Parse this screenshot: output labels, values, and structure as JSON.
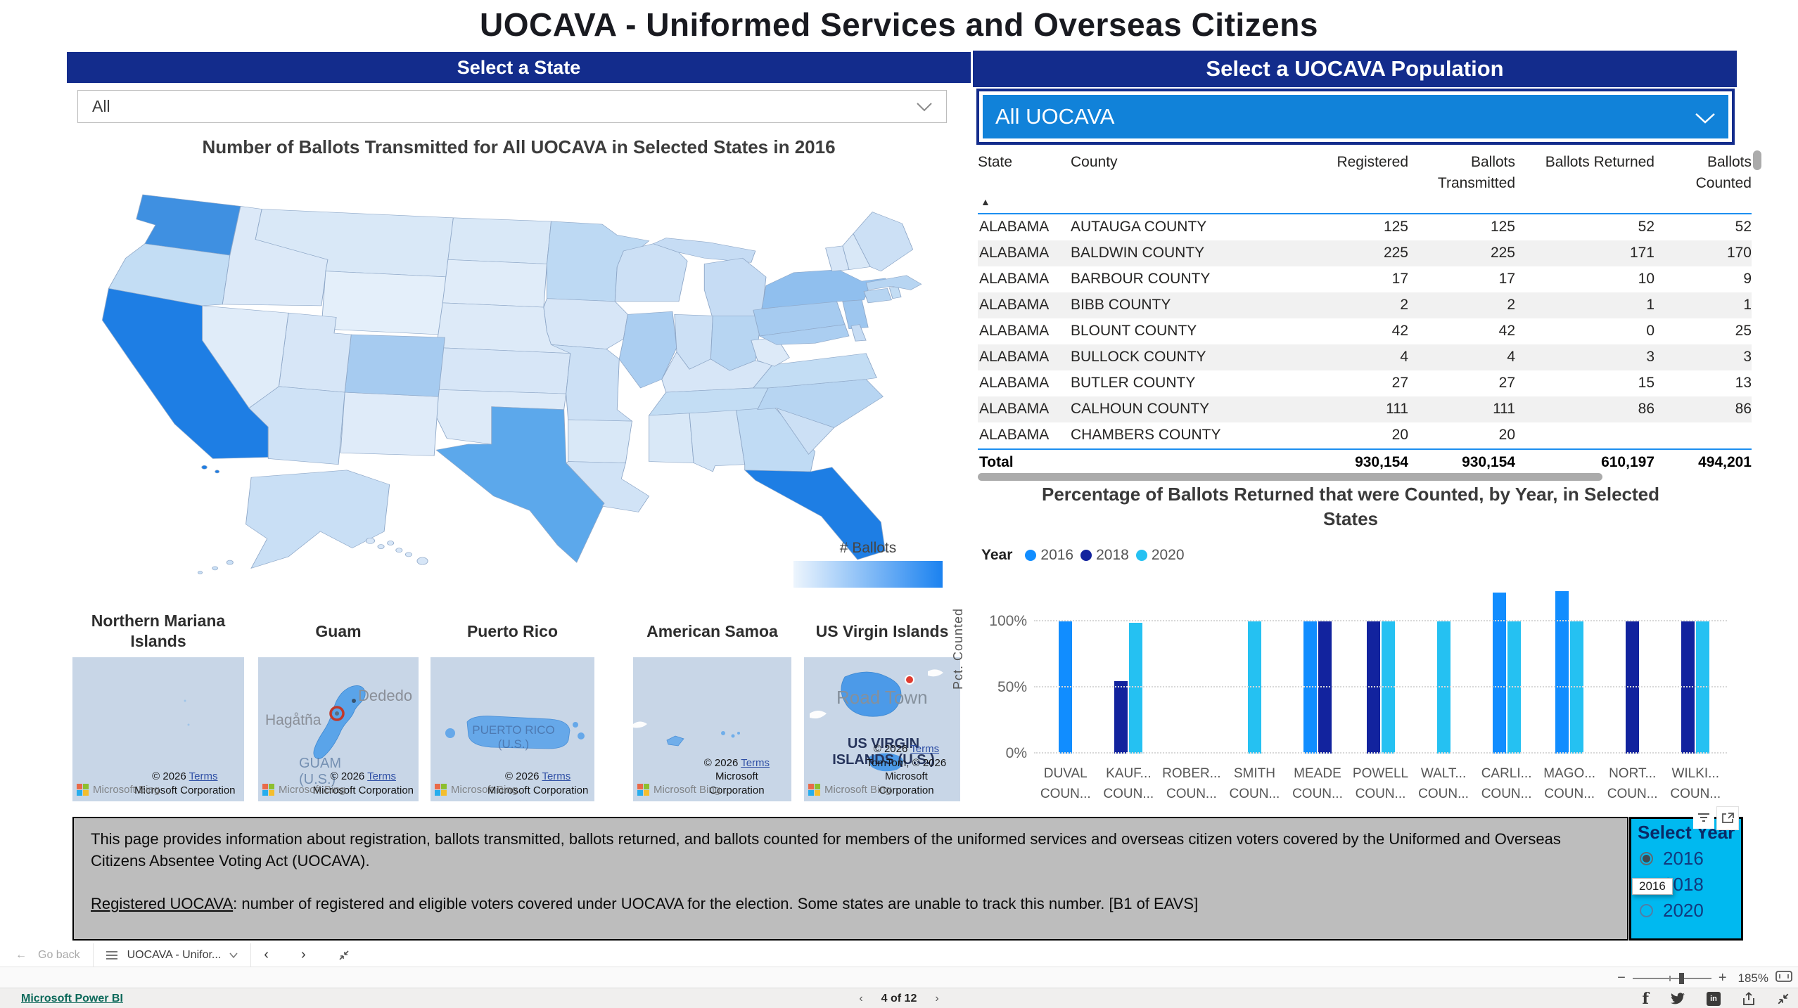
{
  "page_title": "UOCAVA - Uniformed Services and Overseas Citizens",
  "left_panel": {
    "header": "Select a State",
    "state_dropdown_value": "All",
    "map_title": "Number of Ballots Transmitted for All UOCAVA in Selected States in 2016",
    "territories": [
      {
        "name": "Northern Mariana Islands",
        "labels": [],
        "attribution": {
          "prefix": "© 2026",
          "terms": "Terms",
          "rest": "Microsoft Corporation"
        },
        "bing": "Microsoft Bing"
      },
      {
        "name": "Guam",
        "labels": [
          "Hagåtña",
          "Dededo",
          "GUAM (U.S.)"
        ],
        "attribution": {
          "prefix": "© 2026",
          "terms": "Terms",
          "rest": "Microsoft Corporation"
        },
        "bing": "Microsoft Bing"
      },
      {
        "name": "Puerto Rico",
        "labels": [
          "PUERTO RICO (U.S.)"
        ],
        "attribution": {
          "prefix": "© 2026",
          "terms": "Terms",
          "rest": "Microsoft Corporation"
        },
        "bing": "Microsoft Bing"
      },
      {
        "name": "American Samoa",
        "labels": [],
        "attribution": {
          "prefix": "© 2026",
          "terms": "Terms",
          "rest": "Microsoft Corporation"
        },
        "bing": "Microsoft Bing"
      },
      {
        "name": "US Virgin Islands",
        "labels": [
          "Road Town",
          "US VIRGIN ISLANDS (U.S.)"
        ],
        "attribution": {
          "prefix": "© 2026",
          "terms": "Terms",
          "rest": "TomTom, © 2026 Microsoft Corporation"
        },
        "bing": "Microsoft Bing"
      }
    ]
  },
  "map": {
    "legend": {
      "label": "# Ballots",
      "gradient": [
        "#EDF5FD",
        "#1B82F0"
      ]
    },
    "default_fill": "#DCE9F8",
    "state_fills": {
      "WA": "#3F90E1",
      "OR": "#C3DDF4",
      "CA": "#1E7EE4",
      "NV": "#E0ECF9",
      "ID": "#DCE9F8",
      "MT": "#D9E8F7",
      "WY": "#E4EFFA",
      "UT": "#D7E6F7",
      "CO": "#A6CBF0",
      "AZ": "#CFE2F6",
      "NM": "#DFEBF9",
      "ND": "#D9E8F7",
      "SD": "#E0ECF9",
      "NE": "#DDEAF8",
      "KS": "#D7E6F7",
      "OK": "#DDEAF8",
      "TX": "#5CA8EB",
      "MN": "#BDD9F3",
      "IA": "#D7E6F7",
      "MO": "#CCE0F5",
      "AR": "#D9E8F7",
      "LA": "#D1E3F6",
      "WI": "#CCE0F5",
      "IL": "#ABCEF1",
      "MI": "#C6DCF4",
      "IN": "#CCE0F5",
      "OH": "#B7D5F2",
      "KY": "#D7E6F7",
      "TN": "#C3DDF4",
      "MS": "#D9E8F7",
      "AL": "#D4E5F6",
      "GA": "#C0DBF4",
      "FL": "#1E7EE4",
      "SC": "#CCE0F5",
      "NC": "#B7D5F2",
      "VA": "#C3DDF4",
      "WV": "#DDEAF8",
      "PA": "#A6CBF0",
      "NY": "#90BFEE",
      "NJ": "#9DC6EF",
      "MD": "#ABCEF1",
      "DE": "#C6DCF4",
      "CT": "#B7D5F2",
      "RI": "#C3DDF4",
      "MA": "#B7D5F2",
      "VT": "#D7E6F7",
      "NH": "#D9E8F7",
      "ME": "#CCE0F5",
      "AK": "#C9DFF5",
      "HI": "#D7E6F7"
    }
  },
  "right_panel": {
    "header": "Select a UOCAVA Population",
    "population_dropdown_value": "All UOCAVA",
    "table": {
      "columns": [
        "State",
        "County",
        "Registered",
        "Ballots\nTransmitted",
        "Ballots Returned",
        "Ballots\nCounted"
      ],
      "sort_icon": "▲",
      "rows": [
        [
          "ALABAMA",
          "AUTAUGA COUNTY",
          "125",
          "125",
          "52",
          "52"
        ],
        [
          "ALABAMA",
          "BALDWIN COUNTY",
          "225",
          "225",
          "171",
          "170"
        ],
        [
          "ALABAMA",
          "BARBOUR COUNTY",
          "17",
          "17",
          "10",
          "9"
        ],
        [
          "ALABAMA",
          "BIBB COUNTY",
          "2",
          "2",
          "1",
          "1"
        ],
        [
          "ALABAMA",
          "BLOUNT COUNTY",
          "42",
          "42",
          "0",
          "25"
        ],
        [
          "ALABAMA",
          "BULLOCK COUNTY",
          "4",
          "4",
          "3",
          "3"
        ],
        [
          "ALABAMA",
          "BUTLER COUNTY",
          "27",
          "27",
          "15",
          "13"
        ],
        [
          "ALABAMA",
          "CALHOUN COUNTY",
          "111",
          "111",
          "86",
          "86"
        ],
        [
          "ALABAMA",
          "CHAMBERS COUNTY",
          "20",
          "20",
          "",
          ""
        ]
      ],
      "total_row": [
        "Total",
        "",
        "930,154",
        "930,154",
        "610,197",
        "494,201"
      ]
    }
  },
  "chart_data": {
    "type": "bar",
    "title": "Percentage of Ballots Returned that were Counted, by Year, in Selected States",
    "legend_title": "Year",
    "legend_position": "top-left",
    "ylabel": "Pct. Counted",
    "ymax": 130,
    "grid": true,
    "yticks": [
      {
        "value": 0,
        "label": "0%"
      },
      {
        "value": 50,
        "label": "50%"
      },
      {
        "value": 100,
        "label": "100%"
      }
    ],
    "categories": [
      "DUVAL COUN...",
      "KAUF... COUN...",
      "ROBER... COUN...",
      "SMITH COUN...",
      "MEADE COUN...",
      "POWELL COUN...",
      "WALT... COUN...",
      "CARLI... COUN...",
      "MAGO... COUN...",
      "NORT... COUN...",
      "WILKI... COUN..."
    ],
    "series": [
      {
        "name": "2016",
        "color": "#118DFF",
        "values": [
          100,
          null,
          null,
          null,
          100,
          null,
          null,
          122,
          123,
          null,
          null
        ]
      },
      {
        "name": "2018",
        "color": "#12239E",
        "values": [
          null,
          55,
          null,
          null,
          100,
          100,
          null,
          null,
          null,
          100,
          100
        ]
      },
      {
        "name": "2020",
        "color": "#25C1F2",
        "values": [
          null,
          99,
          null,
          100,
          null,
          100,
          100,
          100,
          100,
          null,
          100
        ]
      }
    ]
  },
  "description": {
    "para1": "This page provides information about registration, ballots transmitted, ballots returned, and ballots counted for members of the uniformed services and overseas citizen voters covered by the Uniformed and Overseas Citizens Absentee Voting Act (UOCAVA).",
    "para2_link": "Registered UOCAVA",
    "para2_rest": ": number of registered and eligible voters covered under UOCAVA for the election. Some states are unable to track this number. [B1 of EAVS]"
  },
  "year_selector": {
    "title": "Select Year",
    "options": [
      "2016",
      "2018",
      "2020"
    ],
    "selected": "2016",
    "tooltip": "2016"
  },
  "footer": {
    "go_back": "Go back",
    "page_menu_label": "UOCAVA - Unifor...",
    "pager": "4 of 12",
    "brand_link": "Microsoft Power BI",
    "zoom_level": "185%"
  }
}
